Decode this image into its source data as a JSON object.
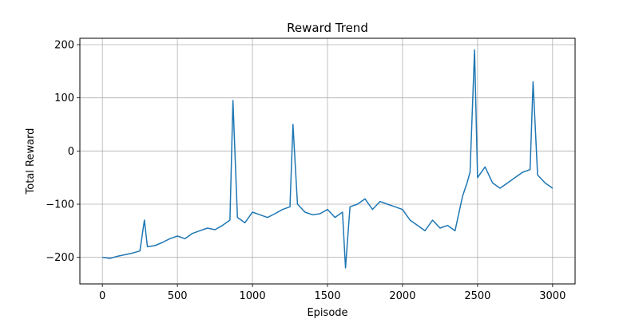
{
  "chart_data": {
    "type": "line",
    "title": "Reward Trend",
    "xlabel": "Episode",
    "ylabel": "Total Reward",
    "xlim": [
      -150,
      3150
    ],
    "ylim": [
      -250,
      212
    ],
    "xticks": [
      0,
      500,
      1000,
      1500,
      2000,
      2500,
      3000
    ],
    "yticks": [
      -200,
      -100,
      0,
      100,
      200
    ],
    "grid": true,
    "line_color": "#1f77b4",
    "series": [
      {
        "name": "",
        "x": [
          0,
          50,
          100,
          150,
          200,
          250,
          280,
          300,
          350,
          400,
          450,
          500,
          550,
          600,
          650,
          700,
          750,
          800,
          850,
          870,
          900,
          950,
          1000,
          1050,
          1100,
          1150,
          1200,
          1250,
          1270,
          1300,
          1350,
          1400,
          1450,
          1500,
          1550,
          1600,
          1620,
          1650,
          1700,
          1750,
          1800,
          1850,
          1900,
          1950,
          2000,
          2050,
          2100,
          2150,
          2200,
          2250,
          2300,
          2350,
          2400,
          2430,
          2450,
          2480,
          2500,
          2550,
          2600,
          2650,
          2700,
          2750,
          2800,
          2850,
          2870,
          2900,
          2950,
          3000
        ],
        "values": [
          -200,
          -202,
          -198,
          -195,
          -192,
          -188,
          -130,
          -180,
          -178,
          -172,
          -165,
          -160,
          -165,
          -155,
          -150,
          -145,
          -148,
          -140,
          -130,
          95,
          -125,
          -135,
          -115,
          -120,
          -125,
          -118,
          -110,
          -105,
          50,
          -100,
          -115,
          -120,
          -118,
          -110,
          -125,
          -115,
          -220,
          -105,
          -100,
          -90,
          -110,
          -95,
          -100,
          -105,
          -110,
          -130,
          -140,
          -150,
          -130,
          -145,
          -140,
          -150,
          -85,
          -60,
          -40,
          190,
          -50,
          -30,
          -60,
          -70,
          -60,
          -50,
          -40,
          -35,
          130,
          -45,
          -60,
          -70
        ]
      }
    ]
  }
}
